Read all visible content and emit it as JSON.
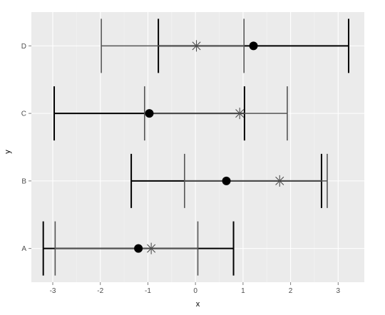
{
  "chart_data": {
    "type": "errorbar",
    "xlabel": "x",
    "ylabel": "y",
    "xlim": [
      -3.45,
      3.55
    ],
    "x_ticks": [
      -3,
      -2,
      -1,
      0,
      1,
      2,
      3
    ],
    "x_tick_labels": [
      "-3",
      "-2",
      "-1",
      "0",
      "1",
      "2",
      "3"
    ],
    "categories": [
      "A",
      "B",
      "C",
      "D"
    ],
    "grid": true,
    "legend": "none",
    "series": [
      {
        "marker": "dot",
        "color": "#000000",
        "errorbar_color": "#000000",
        "points": [
          {
            "category": "A",
            "x": -1.2,
            "xmin": -3.2,
            "xmax": 0.8
          },
          {
            "category": "B",
            "x": 0.65,
            "xmin": -1.35,
            "xmax": 2.65
          },
          {
            "category": "C",
            "x": -0.97,
            "xmin": -2.97,
            "xmax": 1.03
          },
          {
            "category": "D",
            "x": 1.22,
            "xmin": -0.78,
            "xmax": 3.22
          }
        ]
      },
      {
        "marker": "asterisk",
        "color": "#4d4d4d",
        "errorbar_color": "#555555",
        "points": [
          {
            "category": "A",
            "x": -0.93,
            "xmin": -2.95,
            "xmax": 0.05
          },
          {
            "category": "B",
            "x": 1.77,
            "xmin": -0.23,
            "xmax": 2.77
          },
          {
            "category": "C",
            "x": 0.93,
            "xmin": -1.07,
            "xmax": 1.93
          },
          {
            "category": "D",
            "x": 0.02,
            "xmin": -1.98,
            "xmax": 1.02
          }
        ]
      }
    ],
    "colors": {
      "panel": "#ebebeb",
      "major_grid": "#ffffff",
      "minor_grid": "#f4f4f4",
      "tick": "#7f7f7f"
    }
  }
}
